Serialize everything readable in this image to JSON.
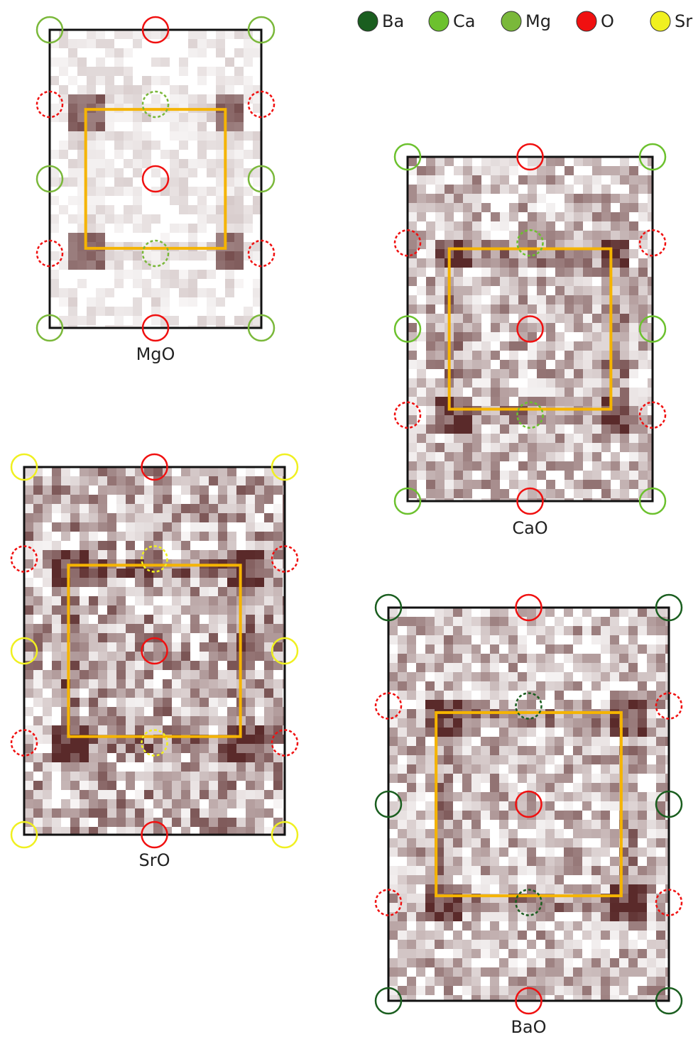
{
  "legend": [
    {
      "label": "Ba",
      "color": "#1a5e1f"
    },
    {
      "label": "Ca",
      "color": "#6cc12e"
    },
    {
      "label": "Mg",
      "color": "#7ab83a"
    },
    {
      "label": "O",
      "color": "#f01010"
    },
    {
      "label": "Sr",
      "color": "#f0f020"
    }
  ],
  "panels": [
    {
      "label": "MgO",
      "element": "Mg"
    },
    {
      "label": "CaO",
      "element": "Ca"
    },
    {
      "label": "SrO",
      "element": "Sr"
    },
    {
      "label": "BaO",
      "element": "Ba"
    }
  ]
}
